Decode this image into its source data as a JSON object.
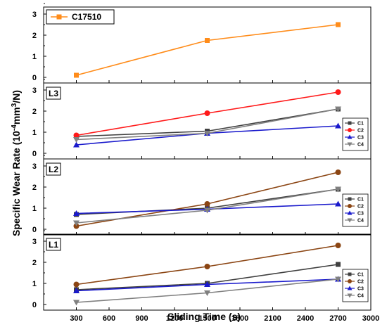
{
  "chart_data": {
    "type": "line",
    "xlabel": "Sliding Time (s)",
    "ylabel": "Specific Wear Rate (10",
    "ylabel_sup": "-4",
    "ylabel_end": "mm",
    "ylabel_sup2": "3",
    "ylabel_tail": "/N)",
    "xlim": [
      0,
      3000
    ],
    "xticks": [
      "300",
      "600",
      "900",
      "1200",
      "1500",
      "1800",
      "2100",
      "2400",
      "2700",
      "3000"
    ],
    "xtick_values": [
      300,
      600,
      900,
      1200,
      1500,
      1800,
      2100,
      2400,
      2700,
      3000
    ],
    "x": [
      300,
      1500,
      2700
    ],
    "panels": [
      {
        "label": "",
        "ylim": [
          0,
          3
        ],
        "yticks": [
          "0",
          "1",
          "2",
          "3"
        ],
        "legend_style": "large",
        "series": [
          {
            "name": "C17510",
            "color": "#ff8c1a",
            "marker": "square",
            "values": [
              0.1,
              1.75,
              2.5
            ]
          }
        ]
      },
      {
        "label": "L3",
        "ylim": [
          0,
          3
        ],
        "yticks": [
          "0",
          "1",
          "2",
          "3"
        ],
        "legend_style": "small",
        "series": [
          {
            "name": "C1",
            "color": "#404040",
            "marker": "square",
            "values": [
              0.8,
              1.05,
              2.1
            ]
          },
          {
            "name": "C2",
            "color": "#ff1a1a",
            "marker": "circle",
            "values": [
              0.85,
              1.9,
              2.9
            ]
          },
          {
            "name": "C3",
            "color": "#1a1acc",
            "marker": "triangle-up",
            "values": [
              0.4,
              0.95,
              1.3
            ]
          },
          {
            "name": "C4",
            "color": "#808080",
            "marker": "triangle-down",
            "values": [
              0.65,
              0.95,
              2.1
            ]
          }
        ]
      },
      {
        "label": "L2",
        "ylim": [
          0,
          3
        ],
        "yticks": [
          "0",
          "1",
          "2",
          "3"
        ],
        "legend_style": "small",
        "series": [
          {
            "name": "C1",
            "color": "#404040",
            "marker": "square",
            "values": [
              0.7,
              1.0,
              1.9
            ]
          },
          {
            "name": "C2",
            "color": "#8b4513",
            "marker": "circle",
            "values": [
              0.15,
              1.2,
              2.7
            ]
          },
          {
            "name": "C3",
            "color": "#1a1acc",
            "marker": "triangle-up",
            "values": [
              0.75,
              0.95,
              1.2
            ]
          },
          {
            "name": "C4",
            "color": "#808080",
            "marker": "triangle-down",
            "values": [
              0.3,
              0.9,
              1.9
            ]
          }
        ]
      },
      {
        "label": "L1",
        "ylim": [
          0,
          3
        ],
        "yticks": [
          "0",
          "1",
          "2",
          "3"
        ],
        "legend_style": "small",
        "series": [
          {
            "name": "C1",
            "color": "#404040",
            "marker": "square",
            "values": [
              0.7,
              1.0,
              1.9
            ]
          },
          {
            "name": "C2",
            "color": "#8b4513",
            "marker": "circle",
            "values": [
              0.95,
              1.8,
              2.8
            ]
          },
          {
            "name": "C3",
            "color": "#1a1acc",
            "marker": "triangle-up",
            "values": [
              0.65,
              0.95,
              1.2
            ]
          },
          {
            "name": "C4",
            "color": "#808080",
            "marker": "triangle-down",
            "values": [
              0.1,
              0.55,
              1.2
            ]
          }
        ]
      }
    ]
  }
}
